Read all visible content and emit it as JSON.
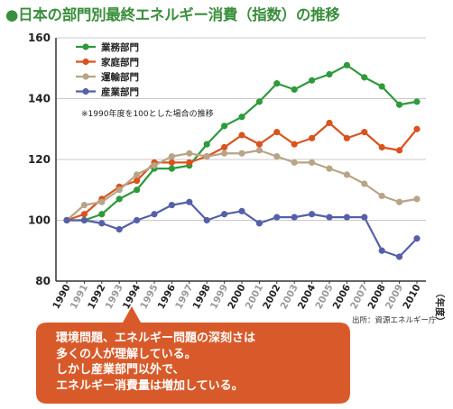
{
  "title": "●日本の部門別最終エネルギー消費（指数）の推移",
  "note": "※1990年度を100とした場合の推移",
  "source": "出所：資源エネルギー庁",
  "x_unit": "（年度）",
  "callout": {
    "lines": [
      "環境問題、エネルギー問題の深刻さは",
      "多くの人が理解している。",
      "しかし産業部門以外で、",
      "エネルギー消費量は増加している。"
    ]
  },
  "colors": {
    "title": "#3a8f3c",
    "grid": "#c8c8c8",
    "callout": "#d85a2a",
    "xtick_dark": "#222222",
    "xtick_light": "#9a9a9a"
  },
  "chart_data": {
    "type": "line",
    "title": "●日本の部門別最終エネルギー消費（指数）の推移",
    "xlabel": "（年度）",
    "ylabel": "",
    "x": [
      "1990",
      "1991",
      "1992",
      "1993",
      "1994",
      "1995",
      "1996",
      "1997",
      "1998",
      "1999",
      "2000",
      "2001",
      "2002",
      "2003",
      "2004",
      "2005",
      "2006",
      "2007",
      "2008",
      "2009",
      "2010"
    ],
    "x_tick_tone": [
      "dark",
      "light",
      "dark",
      "light",
      "dark",
      "light",
      "dark",
      "light",
      "dark",
      "light",
      "dark",
      "light",
      "dark",
      "light",
      "dark",
      "light",
      "dark",
      "light",
      "dark",
      "light",
      "dark"
    ],
    "ylim": [
      80,
      160
    ],
    "yticks": [
      80,
      100,
      120,
      140,
      160
    ],
    "grid": true,
    "legend_position": "top-left",
    "series": [
      {
        "name": "業務部門",
        "color": "#2e9a3c",
        "values": [
          100,
          100,
          102,
          107,
          110,
          117,
          117,
          118,
          125,
          131,
          134,
          139,
          145,
          143,
          146,
          148,
          151,
          147,
          144,
          138,
          139
        ]
      },
      {
        "name": "家庭部門",
        "color": "#d9531e",
        "values": [
          100,
          102,
          107,
          111,
          113,
          119,
          119,
          119,
          121,
          124,
          128,
          125,
          129,
          125,
          127,
          132,
          127,
          129,
          124,
          123,
          130
        ]
      },
      {
        "name": "運輸部門",
        "color": "#b8a486",
        "values": [
          100,
          105,
          106,
          110,
          115,
          118,
          121,
          122,
          121,
          122,
          122,
          123,
          121,
          119,
          119,
          117,
          115,
          112,
          108,
          106,
          107
        ]
      },
      {
        "name": "産業部門",
        "color": "#5560a8",
        "values": [
          100,
          100,
          99,
          97,
          100,
          102,
          105,
          106,
          100,
          102,
          103,
          99,
          101,
          101,
          102,
          101,
          101,
          101,
          90,
          88,
          94
        ]
      }
    ]
  }
}
